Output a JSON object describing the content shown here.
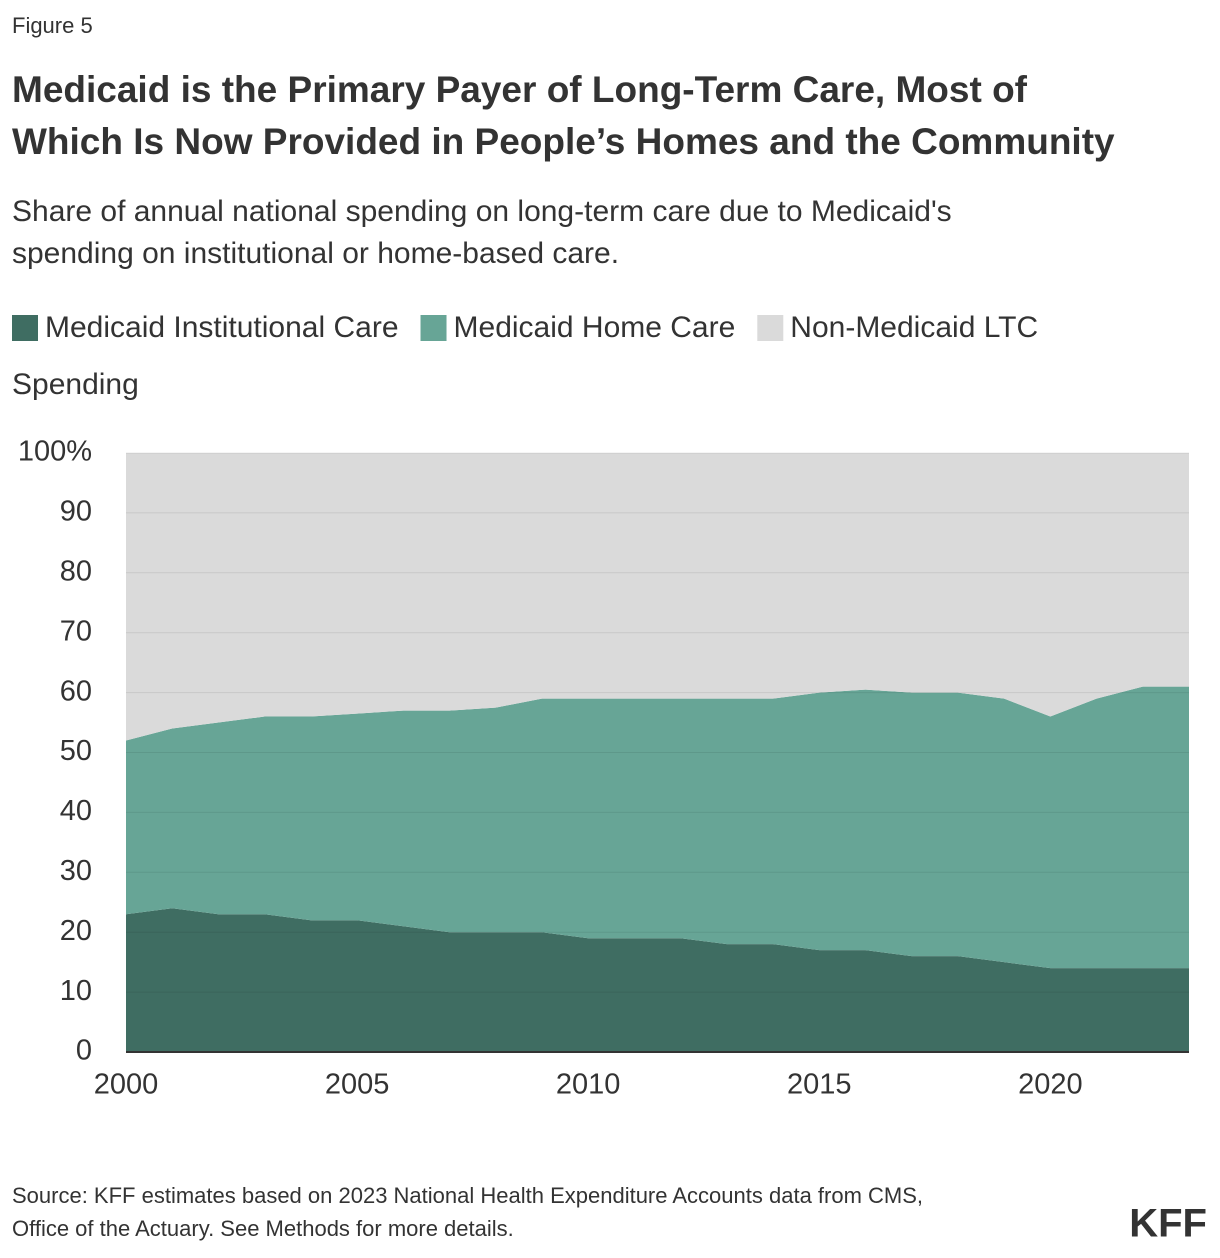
{
  "figure_label": "Figure 5",
  "source": [
    "Source: KFF estimates based on 2023 National Health Expenditure Accounts data from CMS,",
    "Office of the Actuary. See Methods for more details."
  ],
  "logo": "KFF",
  "chart_data": {
    "type": "stacked_area",
    "title": [
      "Medicaid is the Primary Payer of Long-Term Care, Most of",
      "Which Is Now Provided in People’s Homes and the Community"
    ],
    "subtitle": [
      "Share of annual national spending on long-term care due to Medicaid's",
      "spending on institutional or home-based care."
    ],
    "y_label": "Spending",
    "x": [
      2000,
      2001,
      2002,
      2003,
      2004,
      2005,
      2006,
      2007,
      2008,
      2009,
      2010,
      2011,
      2012,
      2013,
      2014,
      2015,
      2016,
      2017,
      2018,
      2019,
      2020,
      2021,
      2022,
      2023
    ],
    "series": [
      {
        "name": "Medicaid Institutional Care",
        "color": "#3f6d62",
        "values": [
          23,
          24,
          23,
          23,
          22,
          22,
          21,
          20,
          20,
          20,
          19,
          19,
          19,
          18,
          18,
          17,
          17,
          16,
          16,
          15,
          14,
          14,
          14,
          14
        ]
      },
      {
        "name": "Medicaid Home Care",
        "color": "#67a596",
        "values": [
          29,
          30,
          32,
          33,
          34,
          34.5,
          36,
          37,
          37.5,
          39,
          40,
          40,
          40,
          41,
          41,
          43,
          43.5,
          44,
          44,
          44,
          42,
          45,
          47,
          47
        ]
      },
      {
        "name": "Non-Medicaid LTC",
        "color": "#dadada",
        "values": [
          48,
          46,
          45,
          44,
          44,
          43.5,
          43,
          43,
          42.5,
          41,
          41,
          41,
          41,
          41,
          41,
          40,
          39.5,
          40,
          40,
          41,
          44,
          41,
          39,
          39
        ]
      }
    ],
    "xlim": [
      2000,
      2023
    ],
    "xticks": [
      2000,
      2005,
      2010,
      2015,
      2020
    ],
    "ylim": [
      0,
      100
    ],
    "yticks": [
      0,
      10,
      20,
      30,
      40,
      50,
      60,
      70,
      80,
      90,
      {
        "value": 100,
        "label": "100%"
      }
    ],
    "grid": true
  }
}
